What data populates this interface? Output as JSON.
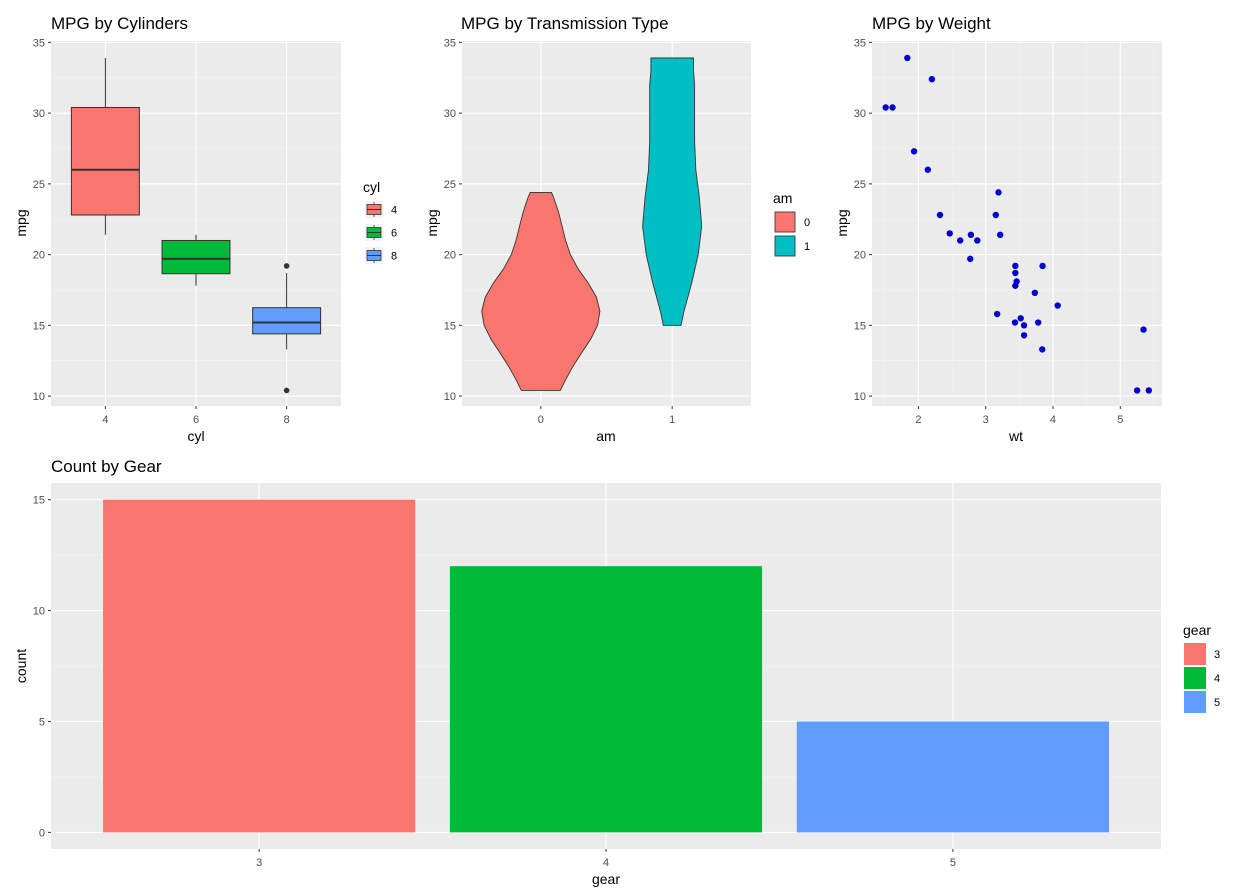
{
  "colors": {
    "panel_background": "#ebebeb",
    "grid_major": "#ffffff",
    "grid_minor": "#f5f5f5",
    "tick_label": "#4d4d4d",
    "point": "#0000cd",
    "red": "#f8766d",
    "green": "#00ba38",
    "blue": "#619cff",
    "teal": "#00bfc4"
  },
  "chart_data": [
    {
      "id": "cyl",
      "type": "boxplot",
      "title": "MPG by Cylinders",
      "xlabel": "cyl",
      "ylabel": "mpg",
      "categories": [
        "4",
        "6",
        "8"
      ],
      "ylim": [
        9.3,
        35.1
      ],
      "yticks": [
        10,
        15,
        20,
        25,
        30,
        35
      ],
      "grid": true,
      "legend": {
        "title": "cyl",
        "position": "right",
        "entries": [
          "4",
          "6",
          "8"
        ],
        "colors": [
          "#f8766d",
          "#00ba38",
          "#619cff"
        ]
      },
      "boxes": [
        {
          "category": "4",
          "min": 21.4,
          "q1": 22.8,
          "median": 26.0,
          "q3": 30.4,
          "max": 33.9,
          "outliers": [],
          "color": "#f8766d"
        },
        {
          "category": "6",
          "min": 17.8,
          "q1": 18.65,
          "median": 19.7,
          "q3": 21.0,
          "max": 21.4,
          "outliers": [],
          "color": "#00ba38"
        },
        {
          "category": "8",
          "min": 13.3,
          "q1": 14.4,
          "median": 15.2,
          "q3": 16.25,
          "max": 18.7,
          "outliers": [
            10.4,
            19.2
          ],
          "color": "#619cff"
        }
      ]
    },
    {
      "id": "am",
      "type": "violin",
      "title": "MPG by Transmission Type",
      "xlabel": "am",
      "ylabel": "mpg",
      "categories": [
        "0",
        "1"
      ],
      "ylim": [
        9.3,
        35.1
      ],
      "yticks": [
        10,
        15,
        20,
        25,
        30,
        35
      ],
      "grid": true,
      "legend": {
        "title": "am",
        "position": "right",
        "entries": [
          "0",
          "1"
        ],
        "colors": [
          "#f8766d",
          "#00bfc4"
        ]
      },
      "violins": [
        {
          "category": "0",
          "color": "#f8766d",
          "profile": [
            [
              10.4,
              0.33
            ],
            [
              11.0,
              0.4
            ],
            [
              12.0,
              0.53
            ],
            [
              13.0,
              0.68
            ],
            [
              14.0,
              0.84
            ],
            [
              15.0,
              0.96
            ],
            [
              16.0,
              1.0
            ],
            [
              17.0,
              0.94
            ],
            [
              18.0,
              0.8
            ],
            [
              19.0,
              0.63
            ],
            [
              20.0,
              0.5
            ],
            [
              21.0,
              0.42
            ],
            [
              22.0,
              0.36
            ],
            [
              23.0,
              0.3
            ],
            [
              24.0,
              0.22
            ],
            [
              24.4,
              0.18
            ]
          ]
        },
        {
          "category": "1",
          "color": "#00bfc4",
          "profile": [
            [
              15.0,
              0.15
            ],
            [
              16.0,
              0.2
            ],
            [
              18.0,
              0.33
            ],
            [
              20.0,
              0.44
            ],
            [
              22.0,
              0.5
            ],
            [
              24.0,
              0.46
            ],
            [
              26.0,
              0.4
            ],
            [
              28.0,
              0.38
            ],
            [
              30.0,
              0.38
            ],
            [
              31.0,
              0.38
            ],
            [
              32.0,
              0.38
            ],
            [
              33.0,
              0.36
            ],
            [
              33.9,
              0.36
            ]
          ]
        }
      ]
    },
    {
      "id": "wt",
      "type": "scatter",
      "title": "MPG by Weight",
      "xlabel": "wt",
      "ylabel": "mpg",
      "xlim": [
        1.31,
        5.62
      ],
      "ylim": [
        9.3,
        35.1
      ],
      "xticks": [
        2,
        3,
        4,
        5
      ],
      "yticks": [
        10,
        15,
        20,
        25,
        30,
        35
      ],
      "grid": true,
      "points": [
        [
          2.62,
          21.0
        ],
        [
          2.875,
          21.0
        ],
        [
          2.32,
          22.8
        ],
        [
          3.215,
          21.4
        ],
        [
          3.44,
          18.7
        ],
        [
          3.46,
          18.1
        ],
        [
          3.57,
          14.3
        ],
        [
          3.19,
          24.4
        ],
        [
          3.15,
          22.8
        ],
        [
          3.44,
          19.2
        ],
        [
          3.44,
          17.8
        ],
        [
          4.07,
          16.4
        ],
        [
          3.73,
          17.3
        ],
        [
          3.78,
          15.2
        ],
        [
          5.25,
          10.4
        ],
        [
          5.424,
          10.4
        ],
        [
          5.345,
          14.7
        ],
        [
          2.2,
          32.4
        ],
        [
          1.615,
          30.4
        ],
        [
          1.835,
          33.9
        ],
        [
          2.465,
          21.5
        ],
        [
          3.52,
          15.5
        ],
        [
          3.435,
          15.2
        ],
        [
          3.84,
          13.3
        ],
        [
          3.845,
          19.2
        ],
        [
          1.935,
          27.3
        ],
        [
          2.14,
          26.0
        ],
        [
          1.513,
          30.4
        ],
        [
          3.17,
          15.8
        ],
        [
          2.77,
          19.7
        ],
        [
          3.57,
          15.0
        ],
        [
          2.78,
          21.4
        ]
      ]
    },
    {
      "id": "gear",
      "type": "bar",
      "title": "Count by Gear",
      "xlabel": "gear",
      "ylabel": "count",
      "categories": [
        "3",
        "4",
        "5"
      ],
      "values": [
        15,
        12,
        5
      ],
      "colors": [
        "#f8766d",
        "#00ba38",
        "#619cff"
      ],
      "ylim": [
        -0.75,
        15.75
      ],
      "yticks": [
        0,
        5,
        10,
        15
      ],
      "grid": true,
      "legend": {
        "title": "gear",
        "position": "right",
        "entries": [
          "3",
          "4",
          "5"
        ],
        "colors": [
          "#f8766d",
          "#00ba38",
          "#619cff"
        ]
      }
    }
  ]
}
